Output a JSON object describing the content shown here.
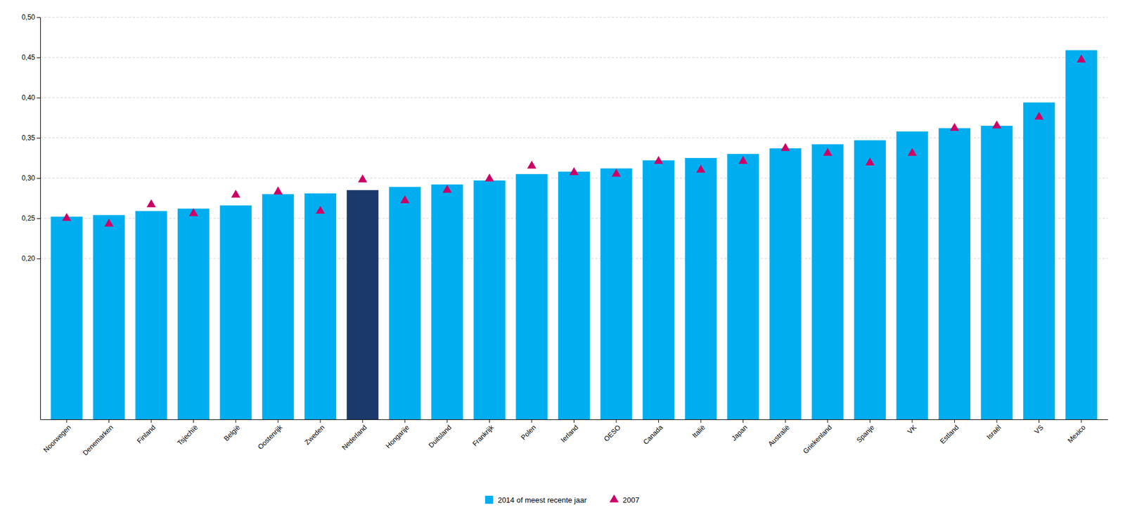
{
  "chart_data": {
    "type": "bar",
    "categories": [
      "Noorwegen",
      "Denemarken",
      "Finland",
      "Tsjechïë",
      "België",
      "Oostenrijk",
      "Zweden",
      "Nederland",
      "Hongarije",
      "Duitsland",
      "Frankrijk",
      "Polen",
      "Ierland",
      "OESO",
      "Canada",
      "Italië",
      "Japan",
      "Australië",
      "Griekenland",
      "Spanje",
      "VK",
      "Estland",
      "Israël",
      "VS",
      "Mexico"
    ],
    "series": [
      {
        "name": "2014 of meest recente jaar",
        "type": "bar",
        "color": "#00AEEF",
        "colors": [
          "#00AEEF",
          "#00AEEF",
          "#00AEEF",
          "#00AEEF",
          "#00AEEF",
          "#00AEEF",
          "#00AEEF",
          "#1B3A6B",
          "#00AEEF",
          "#00AEEF",
          "#00AEEF",
          "#00AEEF",
          "#00AEEF",
          "#00AEEF",
          "#00AEEF",
          "#00AEEF",
          "#00AEEF",
          "#00AEEF",
          "#00AEEF",
          "#00AEEF",
          "#00AEEF",
          "#00AEEF",
          "#00AEEF",
          "#00AEEF",
          "#00AEEF"
        ],
        "values": [
          0.252,
          0.254,
          0.259,
          0.262,
          0.266,
          0.28,
          0.281,
          0.285,
          0.289,
          0.292,
          0.297,
          0.305,
          0.308,
          0.312,
          0.322,
          0.325,
          0.33,
          0.337,
          0.342,
          0.347,
          0.358,
          0.362,
          0.365,
          0.394,
          0.459
        ]
      },
      {
        "name": "2007",
        "type": "scatter",
        "color": "#CC0066",
        "marker": "triangle",
        "values": [
          0.25,
          0.243,
          0.267,
          0.256,
          0.279,
          0.283,
          0.259,
          0.298,
          0.272,
          0.285,
          0.299,
          0.315,
          0.307,
          0.305,
          0.321,
          0.31,
          0.321,
          0.337,
          0.331,
          0.319,
          0.331,
          0.362,
          0.365,
          0.376,
          0.447
        ]
      }
    ],
    "ylim": [
      0.0,
      0.5
    ],
    "yticks": [
      {
        "value": 0.2,
        "label": "0,20"
      },
      {
        "value": 0.25,
        "label": "0,25"
      },
      {
        "value": 0.3,
        "label": "0,30"
      },
      {
        "value": 0.35,
        "label": "0,35"
      },
      {
        "value": 0.4,
        "label": "0,40"
      },
      {
        "value": 0.45,
        "label": "0,45"
      },
      {
        "value": 0.5,
        "label": "0,50"
      }
    ],
    "grid": true,
    "legend": "bottom"
  }
}
